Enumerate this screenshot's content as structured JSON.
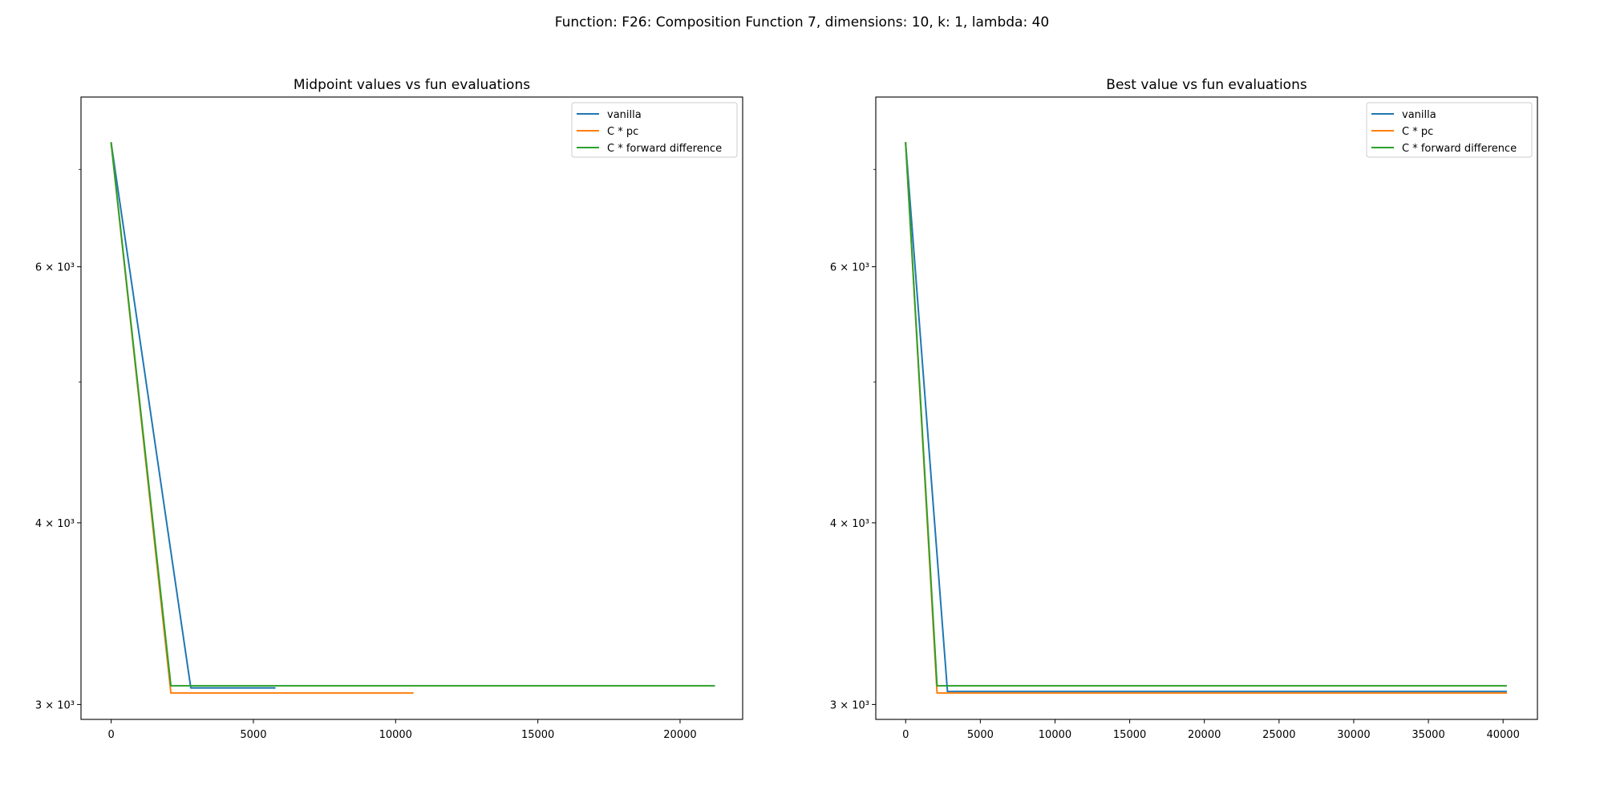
{
  "suptitle": "Function: F26: Composition Function 7, dimensions: 10, k: 1, lambda: 40",
  "colors": {
    "vanilla": "#1f77b4",
    "cpc": "#ff7f0e",
    "cfd": "#2ca02c"
  },
  "chart_data": [
    {
      "type": "line",
      "title": "Midpoint values vs fun evaluations",
      "xlabel": "",
      "ylabel": "",
      "yscale": "log",
      "xlim": [
        -1060,
        22200
      ],
      "ylim": [
        2930,
        7850
      ],
      "xticks": [
        0,
        5000,
        10000,
        15000,
        20000
      ],
      "xtick_labels": [
        "0",
        "5000",
        "10000",
        "15000",
        "20000"
      ],
      "yticks_major": [
        3000,
        4000,
        6000
      ],
      "ytick_labels": [
        "3 × 10³",
        "4 × 10³",
        "6 × 10³"
      ],
      "yticks_minor": [
        5000,
        7000
      ],
      "legend_position": "top-right",
      "series": [
        {
          "name": "vanilla",
          "color": "#1f77b4",
          "x": [
            0,
            2800,
            5750
          ],
          "y": [
            7300,
            3080,
            3080
          ]
        },
        {
          "name": "C * pc",
          "color": "#ff7f0e",
          "x": [
            0,
            2100,
            10600
          ],
          "y": [
            7300,
            3055,
            3055
          ]
        },
        {
          "name": "C * forward difference",
          "color": "#2ca02c",
          "x": [
            0,
            2100,
            21200
          ],
          "y": [
            7300,
            3090,
            3090
          ]
        }
      ]
    },
    {
      "type": "line",
      "title": "Best value vs fun evaluations",
      "xlabel": "",
      "ylabel": "",
      "yscale": "log",
      "xlim": [
        -2000,
        42300
      ],
      "ylim": [
        2930,
        7850
      ],
      "xticks": [
        0,
        5000,
        10000,
        15000,
        20000,
        25000,
        30000,
        35000,
        40000
      ],
      "xtick_labels": [
        "0",
        "5000",
        "10000",
        "15000",
        "20000",
        "25000",
        "30000",
        "35000",
        "40000"
      ],
      "yticks_major": [
        3000,
        4000,
        6000
      ],
      "ytick_labels": [
        "3 × 10³",
        "4 × 10³",
        "6 × 10³"
      ],
      "yticks_minor": [
        5000,
        7000
      ],
      "legend_position": "top-right",
      "series": [
        {
          "name": "vanilla",
          "color": "#1f77b4",
          "x": [
            0,
            2800,
            40200
          ],
          "y": [
            7300,
            3062,
            3062
          ]
        },
        {
          "name": "C * pc",
          "color": "#ff7f0e",
          "x": [
            0,
            2100,
            40200
          ],
          "y": [
            7300,
            3055,
            3055
          ]
        },
        {
          "name": "C * forward difference",
          "color": "#2ca02c",
          "x": [
            0,
            2100,
            40200
          ],
          "y": [
            7300,
            3090,
            3090
          ]
        }
      ]
    }
  ]
}
